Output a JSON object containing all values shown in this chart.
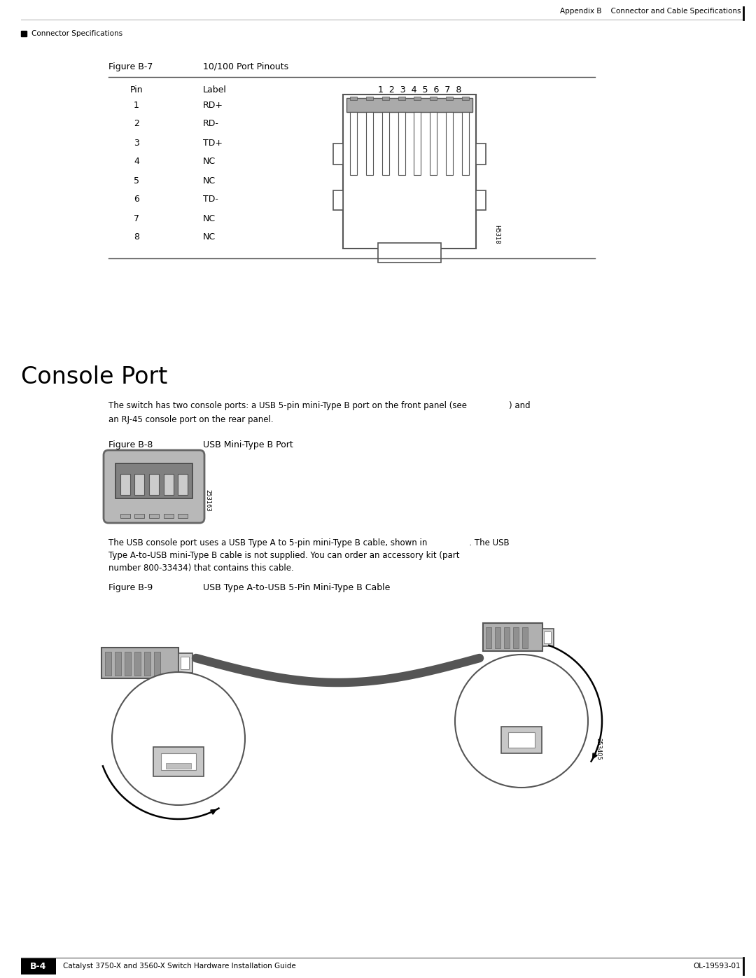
{
  "page_bg": "#ffffff",
  "top_header_text": "Appendix B    Connector and Cable Specifications",
  "top_left_text": "Connector Specifications",
  "figure_b7_label": "Figure B-7",
  "figure_b7_title": "10/100 Port Pinouts",
  "table_header_pin": "Pin",
  "table_header_label": "Label",
  "table_header_pins": "1  2  3  4  5  6  7  8",
  "table_rows": [
    [
      "1",
      "RD+"
    ],
    [
      "2",
      "RD-"
    ],
    [
      "3",
      "TD+"
    ],
    [
      "4",
      "NC"
    ],
    [
      "5",
      "NC"
    ],
    [
      "6",
      "TD-"
    ],
    [
      "7",
      "NC"
    ],
    [
      "8",
      "NC"
    ]
  ],
  "figure_id_b7": "H5318",
  "section_title": "Console Port",
  "body_text1a": "The switch has two console ports: a USB 5-pin mini-Type B port on the front panel (see                ) and",
  "body_text1b": "an RJ-45 console port on the rear panel.",
  "figure_b8_label": "Figure B-8",
  "figure_b8_title": "USB Mini-Type B Port",
  "figure_id_b8": "253163",
  "body_text2a": "The USB console port uses a USB Type A to 5-pin mini-Type B cable, shown in                . The USB",
  "body_text2b": "Type A-to-USB mini-Type B cable is not supplied. You can order an accessory kit (part",
  "body_text2c": "number 800-33434) that contains this cable.",
  "figure_b9_label": "Figure B-9",
  "figure_b9_title": "USB Type A-to-USB 5-Pin Mini-Type B Cable",
  "figure_id_b9": "253405",
  "footer_left": "Catalyst 3750-X and 3560-X Switch Hardware Installation Guide",
  "footer_right": "OL-19593-01",
  "footer_page": "B-4",
  "text_color": "#000000",
  "light_gray": "#c0c0c0",
  "medium_gray": "#808080",
  "dark_gray": "#404040",
  "table_line_color": "#555555"
}
